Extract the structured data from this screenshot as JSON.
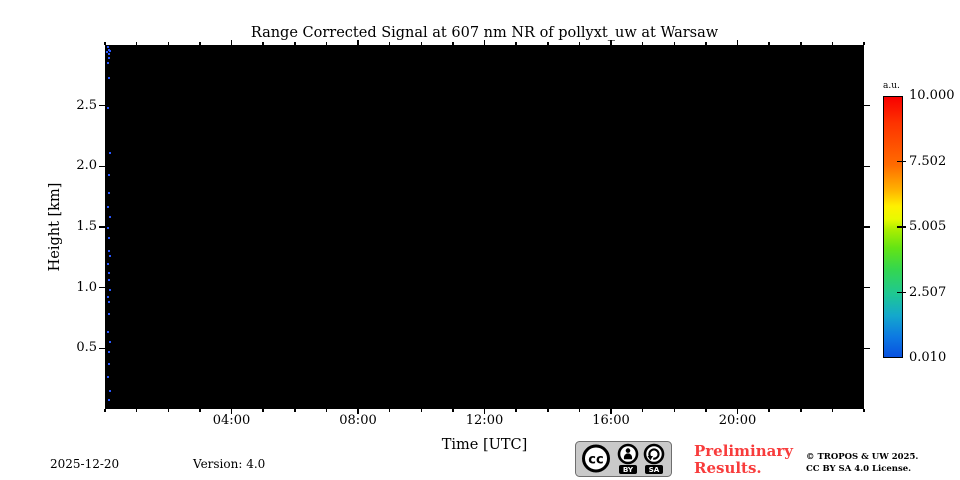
{
  "chart_data": {
    "type": "heatmap",
    "title": "Range Corrected Signal at 607 nm NR of pollyxt_uw at Warsaw",
    "xlabel": "Time [UTC]",
    "ylabel": "Height [km]",
    "x_range_hours": [
      0,
      24
    ],
    "x_minor_tick_interval_hours": 1,
    "x_major_tick_hours": [
      4,
      8,
      12,
      16,
      20
    ],
    "x_tick_labels": [
      "04:00",
      "08:00",
      "12:00",
      "16:00",
      "20:00"
    ],
    "y_range_km": [
      0,
      3
    ],
    "y_tick_values": [
      0.5,
      1.0,
      1.5,
      2.0,
      2.5
    ],
    "y_tick_labels": [
      "0.5",
      "1.0",
      "1.5",
      "2.0",
      "2.5"
    ],
    "grid": false,
    "plot_background": "#000000",
    "field_note": "entire 24 h x 0-3 km field at or below colour-scale minimum (rendered black); sparse blue noise speckles in the first minutes of the day",
    "noise_color": "#2a58ff",
    "noise_points": [
      {
        "t": 0.05,
        "h": 2.99
      },
      {
        "t": 0.1,
        "h": 2.97
      },
      {
        "t": 0.04,
        "h": 2.95
      },
      {
        "t": 0.13,
        "h": 2.96
      },
      {
        "t": 0.08,
        "h": 2.93
      },
      {
        "t": 0.11,
        "h": 2.9
      },
      {
        "t": 0.07,
        "h": 2.86
      },
      {
        "t": 0.09,
        "h": 2.74
      },
      {
        "t": 0.06,
        "h": 2.49
      },
      {
        "t": 0.12,
        "h": 2.12
      },
      {
        "t": 0.08,
        "h": 1.94
      },
      {
        "t": 0.1,
        "h": 1.79
      },
      {
        "t": 0.06,
        "h": 1.67
      },
      {
        "t": 0.14,
        "h": 1.59
      },
      {
        "t": 0.07,
        "h": 1.5
      },
      {
        "t": 0.11,
        "h": 1.42
      },
      {
        "t": 0.09,
        "h": 1.31
      },
      {
        "t": 0.13,
        "h": 1.27
      },
      {
        "t": 0.06,
        "h": 1.2
      },
      {
        "t": 0.1,
        "h": 1.13
      },
      {
        "t": 0.08,
        "h": 1.07
      },
      {
        "t": 0.12,
        "h": 0.99
      },
      {
        "t": 0.07,
        "h": 0.93
      },
      {
        "t": 0.09,
        "h": 0.89
      },
      {
        "t": 0.11,
        "h": 0.79
      },
      {
        "t": 0.06,
        "h": 0.64
      },
      {
        "t": 0.13,
        "h": 0.56
      },
      {
        "t": 0.08,
        "h": 0.48
      },
      {
        "t": 0.1,
        "h": 0.38
      },
      {
        "t": 0.07,
        "h": 0.27
      },
      {
        "t": 0.12,
        "h": 0.16
      },
      {
        "t": 0.09,
        "h": 0.08
      }
    ],
    "colorbar": {
      "unit": "a.u.",
      "tick_labels": [
        "10.000",
        "7.502",
        "5.005",
        "2.507",
        "0.010"
      ],
      "gradient_stops": [
        {
          "pos": 0.0,
          "color": "#f80000"
        },
        {
          "pos": 0.1,
          "color": "#fe3300"
        },
        {
          "pos": 0.26,
          "color": "#ff6b00"
        },
        {
          "pos": 0.36,
          "color": "#ffb400"
        },
        {
          "pos": 0.42,
          "color": "#fff000"
        },
        {
          "pos": 0.47,
          "color": "#e8fa00"
        },
        {
          "pos": 0.51,
          "color": "#abee00"
        },
        {
          "pos": 0.58,
          "color": "#64e414"
        },
        {
          "pos": 0.66,
          "color": "#35d74d"
        },
        {
          "pos": 0.76,
          "color": "#1ec795"
        },
        {
          "pos": 0.84,
          "color": "#14a8cc"
        },
        {
          "pos": 0.92,
          "color": "#0d7ae2"
        },
        {
          "pos": 1.0,
          "color": "#0851e0"
        }
      ]
    }
  },
  "footer": {
    "date": "2025-12-20",
    "version": "Version: 4.0",
    "badge": {
      "cc_label": "cc",
      "by_label": "BY",
      "sa_label": "SA"
    },
    "preliminary_line1": "Preliminary",
    "preliminary_line2": "Results.",
    "preliminary_color": "#f83c3c",
    "copyright_line1": "© TROPOS & UW 2025.",
    "copyright_line2": "CC BY SA 4.0 License."
  }
}
